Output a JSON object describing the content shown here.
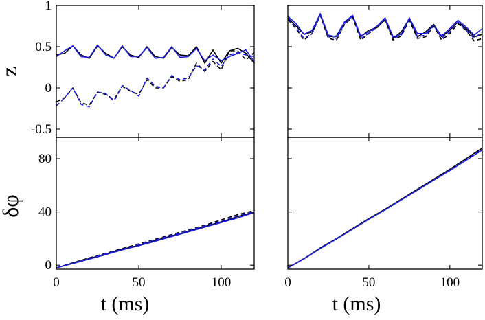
{
  "chart_data": {
    "type": "line",
    "figure_kind": "2x2 panel grid with shared axes",
    "x_axis": {
      "label": "t (ms)",
      "range": [
        0,
        120
      ],
      "ticks": [
        0,
        50,
        100
      ],
      "tick_labels": [
        "0",
        "50",
        "100"
      ]
    },
    "rows": [
      {
        "ylabel": "z",
        "ylim": [
          -0.6,
          1.0
        ],
        "yticks": [
          -0.5,
          0,
          0.5,
          1
        ],
        "ytick_labels": [
          "-0.5",
          "0",
          "0.5",
          "1"
        ]
      },
      {
        "ylabel": "δφ",
        "ylim": [
          -3,
          96
        ],
        "yticks": [
          0,
          40,
          80
        ],
        "ytick_labels": [
          "0",
          "40",
          "80"
        ]
      }
    ],
    "colors": {
      "black": "#000000",
      "blue": "#1f1fdb"
    },
    "panels": [
      {
        "name": "top-left",
        "row": 0,
        "col": 0,
        "series": [
          {
            "name": "z1 black solid",
            "color": "black",
            "dash": "solid",
            "x": [
              0,
              5,
              10,
              15,
              20,
              25,
              30,
              35,
              40,
              45,
              50,
              55,
              60,
              65,
              70,
              75,
              80,
              85,
              90,
              95,
              100,
              105,
              110,
              115,
              120
            ],
            "y": [
              0.4,
              0.42,
              0.51,
              0.4,
              0.36,
              0.51,
              0.42,
              0.36,
              0.5,
              0.4,
              0.37,
              0.5,
              0.38,
              0.36,
              0.49,
              0.4,
              0.39,
              0.5,
              0.3,
              0.46,
              0.3,
              0.45,
              0.48,
              0.42,
              0.3
            ]
          },
          {
            "name": "z1 blue solid",
            "color": "blue",
            "dash": "solid",
            "x": [
              0,
              5,
              10,
              15,
              20,
              25,
              30,
              35,
              40,
              45,
              50,
              55,
              60,
              65,
              70,
              75,
              80,
              85,
              90,
              95,
              100,
              105,
              110,
              115,
              120
            ],
            "y": [
              0.38,
              0.45,
              0.51,
              0.38,
              0.37,
              0.52,
              0.4,
              0.36,
              0.51,
              0.38,
              0.38,
              0.49,
              0.36,
              0.37,
              0.5,
              0.37,
              0.38,
              0.48,
              0.33,
              0.4,
              0.33,
              0.38,
              0.42,
              0.46,
              0.32
            ]
          },
          {
            "name": "z2 black dashed",
            "color": "black",
            "dash": "dashed",
            "x": [
              0,
              5,
              10,
              15,
              20,
              25,
              30,
              35,
              40,
              45,
              50,
              55,
              60,
              65,
              70,
              75,
              80,
              85,
              90,
              95,
              100,
              105,
              110,
              115,
              120
            ],
            "y": [
              -0.17,
              -0.12,
              0.0,
              -0.18,
              -0.21,
              -0.05,
              -0.08,
              -0.14,
              0.02,
              -0.04,
              -0.08,
              0.1,
              0.0,
              0.0,
              0.14,
              0.08,
              0.1,
              0.3,
              0.2,
              0.32,
              0.22,
              0.45,
              0.45,
              0.34,
              0.43
            ]
          },
          {
            "name": "z2 blue dashed",
            "color": "blue",
            "dash": "dashed",
            "x": [
              0,
              5,
              10,
              15,
              20,
              25,
              30,
              35,
              40,
              45,
              50,
              55,
              60,
              65,
              70,
              75,
              80,
              85,
              90,
              95,
              100,
              105,
              110,
              115,
              120
            ],
            "y": [
              -0.22,
              -0.12,
              0.0,
              -0.2,
              -0.23,
              -0.05,
              -0.07,
              -0.16,
              0.03,
              -0.03,
              -0.1,
              0.12,
              0.02,
              0.0,
              0.15,
              0.1,
              0.12,
              0.27,
              0.22,
              0.35,
              0.26,
              0.4,
              0.43,
              0.4,
              0.38
            ]
          }
        ]
      },
      {
        "name": "top-right",
        "row": 0,
        "col": 1,
        "series": [
          {
            "name": "z1 black solid",
            "color": "black",
            "dash": "solid",
            "x": [
              0,
              5,
              10,
              15,
              20,
              25,
              30,
              35,
              40,
              45,
              50,
              55,
              60,
              65,
              70,
              75,
              80,
              85,
              90,
              95,
              100,
              105,
              110,
              115,
              120
            ],
            "y": [
              0.85,
              0.75,
              0.65,
              0.68,
              0.9,
              0.62,
              0.63,
              0.8,
              0.87,
              0.62,
              0.7,
              0.73,
              0.83,
              0.6,
              0.68,
              0.84,
              0.62,
              0.68,
              0.77,
              0.62,
              0.7,
              0.8,
              0.72,
              0.62,
              0.65
            ]
          },
          {
            "name": "z1 blue solid",
            "color": "blue",
            "dash": "solid",
            "x": [
              0,
              5,
              10,
              15,
              20,
              25,
              30,
              35,
              40,
              45,
              50,
              55,
              60,
              65,
              70,
              75,
              80,
              85,
              90,
              95,
              100,
              105,
              110,
              115,
              120
            ],
            "y": [
              0.87,
              0.78,
              0.65,
              0.7,
              0.9,
              0.64,
              0.62,
              0.8,
              0.88,
              0.63,
              0.68,
              0.75,
              0.85,
              0.62,
              0.65,
              0.85,
              0.66,
              0.66,
              0.76,
              0.63,
              0.72,
              0.82,
              0.74,
              0.64,
              0.72
            ]
          },
          {
            "name": "z2 black dashed",
            "color": "black",
            "dash": "dashed",
            "x": [
              0,
              5,
              10,
              15,
              20,
              25,
              30,
              35,
              40,
              45,
              50,
              55,
              60,
              65,
              70,
              75,
              80,
              85,
              90,
              95,
              100,
              105,
              110,
              115,
              120
            ],
            "y": [
              0.83,
              0.72,
              0.58,
              0.66,
              0.88,
              0.6,
              0.58,
              0.77,
              0.86,
              0.58,
              0.66,
              0.74,
              0.82,
              0.58,
              0.63,
              0.82,
              0.6,
              0.62,
              0.75,
              0.58,
              0.66,
              0.78,
              0.7,
              0.57,
              0.6
            ]
          },
          {
            "name": "z2 blue dashed",
            "color": "blue",
            "dash": "dashed",
            "x": [
              0,
              5,
              10,
              15,
              20,
              25,
              30,
              35,
              40,
              45,
              50,
              55,
              60,
              65,
              70,
              75,
              80,
              85,
              90,
              95,
              100,
              105,
              110,
              115,
              120
            ],
            "y": [
              0.84,
              0.73,
              0.6,
              0.66,
              0.88,
              0.62,
              0.6,
              0.78,
              0.87,
              0.6,
              0.66,
              0.74,
              0.84,
              0.6,
              0.64,
              0.84,
              0.62,
              0.64,
              0.76,
              0.6,
              0.68,
              0.8,
              0.7,
              0.6,
              0.68
            ]
          }
        ]
      },
      {
        "name": "bottom-left",
        "row": 1,
        "col": 0,
        "series": [
          {
            "name": "dphi black solid",
            "color": "black",
            "dash": "solid",
            "x": [
              0,
              10,
              20,
              30,
              40,
              50,
              60,
              70,
              80,
              90,
              100,
              110,
              120
            ],
            "y": [
              -2,
              1.5,
              5,
              8.5,
              12,
              15,
              18.5,
              22,
              25.5,
              29,
              32.5,
              36.5,
              40
            ]
          },
          {
            "name": "dphi black dashed",
            "color": "black",
            "dash": "dashed",
            "x": [
              0,
              10,
              20,
              30,
              40,
              50,
              60,
              70,
              80,
              90,
              100,
              110,
              120
            ],
            "y": [
              -2,
              1.8,
              5.5,
              9,
              12.5,
              16,
              19.5,
              23,
              26.5,
              30,
              34,
              38,
              41
            ]
          },
          {
            "name": "dphi blue solid",
            "color": "blue",
            "dash": "solid",
            "x": [
              0,
              10,
              20,
              30,
              40,
              50,
              60,
              70,
              80,
              90,
              100,
              110,
              120
            ],
            "y": [
              -2,
              1.2,
              4.6,
              8,
              11.5,
              14.6,
              18,
              21.5,
              25,
              28.5,
              32,
              35.5,
              39.5
            ]
          },
          {
            "name": "dphi blue dashed",
            "color": "blue",
            "dash": "dashed",
            "x": [
              0,
              10,
              20,
              30,
              40,
              50,
              60,
              70,
              80,
              90,
              100,
              110,
              120
            ],
            "y": [
              -2,
              1.5,
              5,
              8.7,
              12,
              15.5,
              19,
              22.5,
              26,
              29.5,
              33,
              37,
              40.5
            ]
          }
        ]
      },
      {
        "name": "bottom-right",
        "row": 1,
        "col": 1,
        "series": [
          {
            "name": "dphi black solid",
            "color": "black",
            "dash": "solid",
            "x": [
              0,
              10,
              20,
              30,
              40,
              50,
              60,
              70,
              80,
              90,
              100,
              110,
              120
            ],
            "y": [
              -2,
              5,
              13,
              20,
              27.5,
              35,
              42,
              49.5,
              57,
              64.5,
              72,
              80,
              88
            ]
          },
          {
            "name": "dphi black dashed",
            "color": "black",
            "dash": "dashed",
            "x": [
              0,
              10,
              20,
              30,
              40,
              50,
              60,
              70,
              80,
              90,
              100,
              110,
              120
            ],
            "y": [
              -2,
              5,
              12.8,
              20,
              27.3,
              34.8,
              42,
              49.3,
              56.8,
              64.3,
              71.8,
              79.5,
              87.5
            ]
          },
          {
            "name": "dphi blue solid",
            "color": "blue",
            "dash": "solid",
            "x": [
              0,
              10,
              20,
              30,
              40,
              50,
              60,
              70,
              80,
              90,
              100,
              110,
              120
            ],
            "y": [
              -2,
              4.8,
              12.5,
              19.7,
              27,
              34.5,
              41.5,
              49,
              56.3,
              63.8,
              71,
              78.8,
              86.5
            ]
          },
          {
            "name": "dphi blue dashed",
            "color": "blue",
            "dash": "dashed",
            "x": [
              0,
              10,
              20,
              30,
              40,
              50,
              60,
              70,
              80,
              90,
              100,
              110,
              120
            ],
            "y": [
              -2,
              4.9,
              12.6,
              19.8,
              27.1,
              34.6,
              41.7,
              49.2,
              56.5,
              64,
              71.3,
              79,
              87
            ]
          }
        ]
      }
    ]
  }
}
